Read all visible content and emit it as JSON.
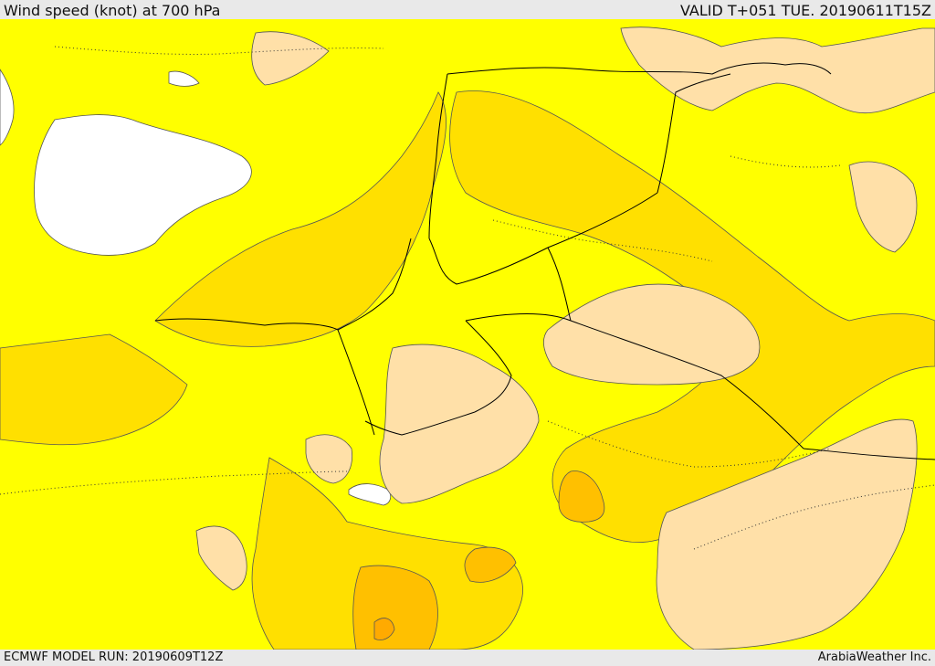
{
  "header": {
    "title": "Wind speed (knot) at 700 hPa",
    "valid_time": "VALID T+051 TUE. 20190611T15Z"
  },
  "footer": {
    "model_run": "ECMWF MODEL RUN: 20190609T12Z",
    "credit": "ArabiaWeather Inc."
  },
  "map": {
    "variable": "wind speed",
    "unit": "knot",
    "pressure_level": "700 hPa",
    "fill_colors": {
      "calm": "#ffffff",
      "light": "#ffe0a8",
      "base": "#ffff00",
      "moderate": "#ffe000",
      "strong": "#ffc000",
      "stronger": "#ffaa00"
    },
    "border_color": "#000000",
    "contour_color": "#555555"
  }
}
